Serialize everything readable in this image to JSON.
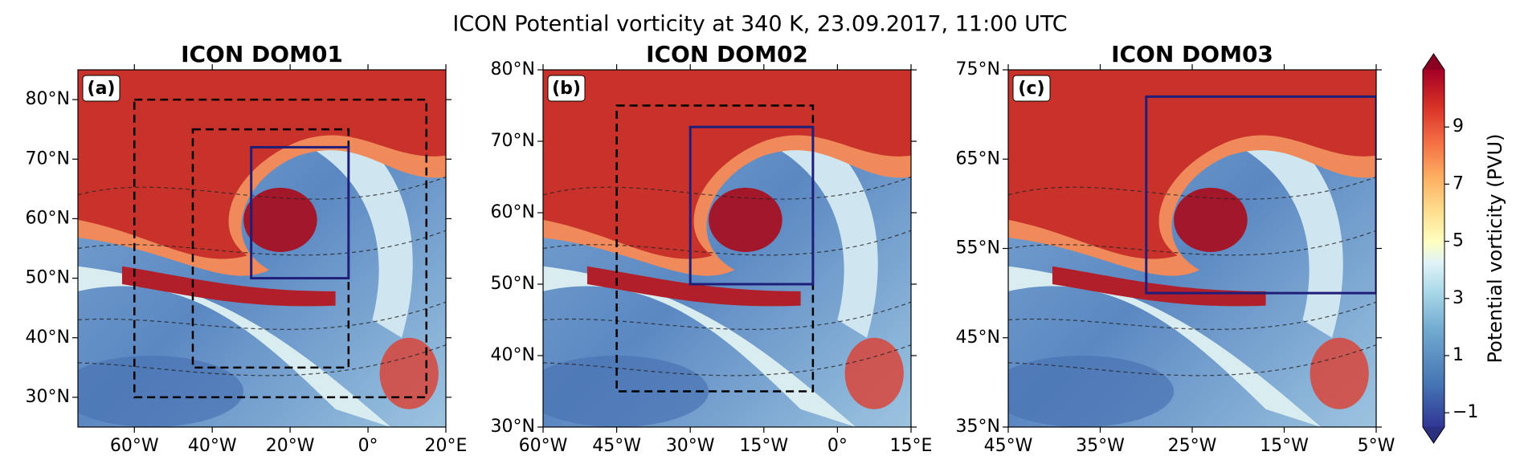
{
  "title": "ICON Potential vorticity at 340 K, 23.09.2017, 11:00 UTC",
  "chart_data": [
    {
      "type": "map",
      "title": "ICON DOM01",
      "panel_label": "(a)",
      "xlim": [
        -74.5,
        20
      ],
      "ylim": [
        25,
        85
      ],
      "xticks": [
        {
          "value": -60,
          "label": "60°W"
        },
        {
          "value": -40,
          "label": "40°W"
        },
        {
          "value": -20,
          "label": "20°W"
        },
        {
          "value": 0,
          "label": "0°"
        },
        {
          "value": 20,
          "label": "20°E"
        }
      ],
      "yticks": [
        {
          "value": 30,
          "label": "30°N"
        },
        {
          "value": 40,
          "label": "40°N"
        },
        {
          "value": 50,
          "label": "50°N"
        },
        {
          "value": 60,
          "label": "60°N"
        },
        {
          "value": 70,
          "label": "70°N"
        },
        {
          "value": 80,
          "label": "80°N"
        }
      ],
      "boxes": [
        {
          "xlim": [
            -60,
            15
          ],
          "ylim": [
            30,
            80
          ],
          "color": "#000000",
          "dashed": true
        },
        {
          "xlim": [
            -45,
            -5
          ],
          "ylim": [
            35,
            75
          ],
          "color": "#000000",
          "dashed": true
        },
        {
          "xlim": [
            -30,
            -5
          ],
          "ylim": [
            50,
            72
          ],
          "color": "#1f1f7a",
          "dashed": false
        }
      ]
    },
    {
      "type": "map",
      "title": "ICON DOM02",
      "panel_label": "(b)",
      "xlim": [
        -60,
        15
      ],
      "ylim": [
        30,
        80
      ],
      "xticks": [
        {
          "value": -60,
          "label": "60°W"
        },
        {
          "value": -45,
          "label": "45°W"
        },
        {
          "value": -30,
          "label": "30°W"
        },
        {
          "value": -15,
          "label": "15°W"
        },
        {
          "value": 0,
          "label": "0°"
        },
        {
          "value": 15,
          "label": "15°E"
        }
      ],
      "yticks": [
        {
          "value": 30,
          "label": "30°N"
        },
        {
          "value": 40,
          "label": "40°N"
        },
        {
          "value": 50,
          "label": "50°N"
        },
        {
          "value": 60,
          "label": "60°N"
        },
        {
          "value": 70,
          "label": "70°N"
        },
        {
          "value": 80,
          "label": "80°N"
        }
      ],
      "boxes": [
        {
          "xlim": [
            -45,
            -5
          ],
          "ylim": [
            35,
            75
          ],
          "color": "#000000",
          "dashed": true
        },
        {
          "xlim": [
            -30,
            -5
          ],
          "ylim": [
            50,
            72
          ],
          "color": "#1f1f7a",
          "dashed": false
        }
      ]
    },
    {
      "type": "map",
      "title": "ICON DOM03",
      "panel_label": "(c)",
      "xlim": [
        -45,
        -5
      ],
      "ylim": [
        35,
        75
      ],
      "xticks": [
        {
          "value": -45,
          "label": "45°W"
        },
        {
          "value": -35,
          "label": "35°W"
        },
        {
          "value": -25,
          "label": "25°W"
        },
        {
          "value": -15,
          "label": "15°W"
        },
        {
          "value": -5,
          "label": "5°W"
        }
      ],
      "yticks": [
        {
          "value": 35,
          "label": "35°N"
        },
        {
          "value": 45,
          "label": "45°N"
        },
        {
          "value": 55,
          "label": "55°N"
        },
        {
          "value": 65,
          "label": "65°N"
        },
        {
          "value": 75,
          "label": "75°N"
        }
      ],
      "boxes": [
        {
          "xlim": [
            -30,
            -5
          ],
          "ylim": [
            50,
            72
          ],
          "color": "#1f1f7a",
          "dashed": false
        }
      ]
    },
    {
      "type": "colorbar",
      "label": "Potential vorticity (PVU)",
      "clim": [
        -1.5,
        11
      ],
      "ticks": [
        {
          "value": -1,
          "label": "−1"
        },
        1,
        3,
        5,
        7,
        9
      ]
    }
  ]
}
